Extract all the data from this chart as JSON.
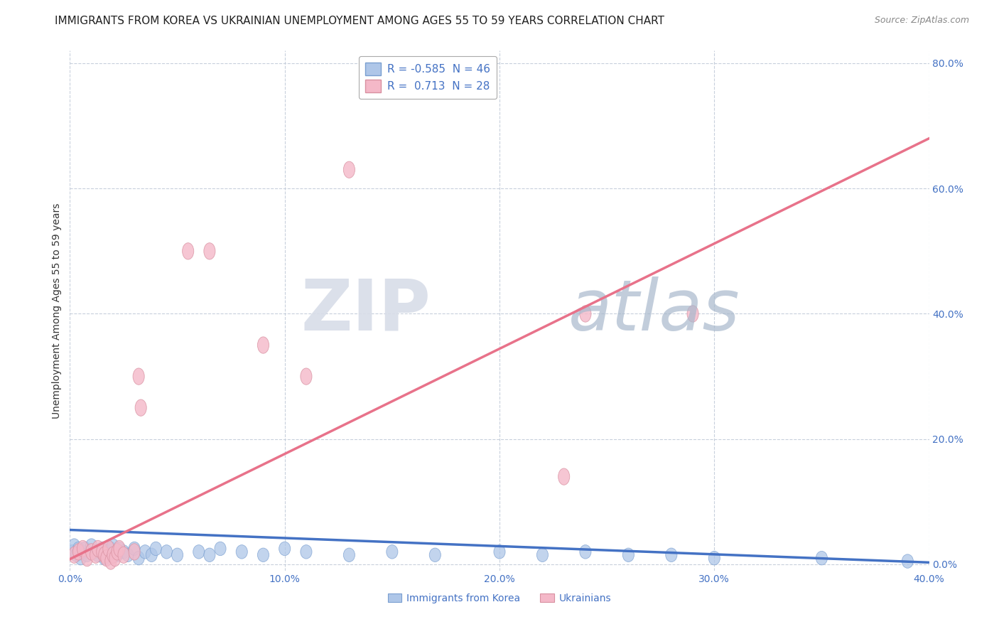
{
  "title": "IMMIGRANTS FROM KOREA VS UKRAINIAN UNEMPLOYMENT AMONG AGES 55 TO 59 YEARS CORRELATION CHART",
  "source": "Source: ZipAtlas.com",
  "ylabel": "Unemployment Among Ages 55 to 59 years",
  "xlim": [
    0.0,
    0.4
  ],
  "ylim": [
    -0.01,
    0.82
  ],
  "xticks": [
    0.0,
    0.1,
    0.2,
    0.3,
    0.4
  ],
  "xticklabels": [
    "0.0%",
    "10.0%",
    "20.0%",
    "30.0%",
    "40.0%"
  ],
  "yticks": [
    0.0,
    0.2,
    0.4,
    0.6,
    0.8
  ],
  "yticklabels": [
    "0.0%",
    "20.0%",
    "40.0%",
    "60.0%",
    "80.0%"
  ],
  "blue_R": -0.585,
  "blue_N": 46,
  "pink_R": 0.713,
  "pink_N": 28,
  "blue_color": "#aec6e8",
  "pink_color": "#f4b8c8",
  "blue_line_color": "#4472c4",
  "pink_line_color": "#e8728a",
  "blue_scatter": [
    [
      0.001,
      0.02
    ],
    [
      0.002,
      0.03
    ],
    [
      0.003,
      0.015
    ],
    [
      0.004,
      0.025
    ],
    [
      0.005,
      0.01
    ],
    [
      0.006,
      0.02
    ],
    [
      0.007,
      0.025
    ],
    [
      0.008,
      0.015
    ],
    [
      0.01,
      0.03
    ],
    [
      0.012,
      0.02
    ],
    [
      0.013,
      0.015
    ],
    [
      0.015,
      0.025
    ],
    [
      0.016,
      0.01
    ],
    [
      0.017,
      0.02
    ],
    [
      0.018,
      0.015
    ],
    [
      0.019,
      0.025
    ],
    [
      0.02,
      0.03
    ],
    [
      0.022,
      0.015
    ],
    [
      0.023,
      0.025
    ],
    [
      0.025,
      0.02
    ],
    [
      0.027,
      0.015
    ],
    [
      0.03,
      0.025
    ],
    [
      0.032,
      0.01
    ],
    [
      0.035,
      0.02
    ],
    [
      0.038,
      0.015
    ],
    [
      0.04,
      0.025
    ],
    [
      0.045,
      0.02
    ],
    [
      0.05,
      0.015
    ],
    [
      0.06,
      0.02
    ],
    [
      0.065,
      0.015
    ],
    [
      0.07,
      0.025
    ],
    [
      0.08,
      0.02
    ],
    [
      0.09,
      0.015
    ],
    [
      0.1,
      0.025
    ],
    [
      0.11,
      0.02
    ],
    [
      0.13,
      0.015
    ],
    [
      0.15,
      0.02
    ],
    [
      0.17,
      0.015
    ],
    [
      0.2,
      0.02
    ],
    [
      0.22,
      0.015
    ],
    [
      0.24,
      0.02
    ],
    [
      0.26,
      0.015
    ],
    [
      0.28,
      0.015
    ],
    [
      0.3,
      0.01
    ],
    [
      0.35,
      0.01
    ],
    [
      0.39,
      0.005
    ]
  ],
  "pink_scatter": [
    [
      0.002,
      0.015
    ],
    [
      0.004,
      0.02
    ],
    [
      0.006,
      0.025
    ],
    [
      0.008,
      0.01
    ],
    [
      0.01,
      0.02
    ],
    [
      0.012,
      0.015
    ],
    [
      0.013,
      0.025
    ],
    [
      0.015,
      0.02
    ],
    [
      0.016,
      0.015
    ],
    [
      0.017,
      0.01
    ],
    [
      0.018,
      0.025
    ],
    [
      0.019,
      0.005
    ],
    [
      0.02,
      0.015
    ],
    [
      0.021,
      0.01
    ],
    [
      0.022,
      0.02
    ],
    [
      0.023,
      0.025
    ],
    [
      0.025,
      0.015
    ],
    [
      0.03,
      0.02
    ],
    [
      0.032,
      0.3
    ],
    [
      0.033,
      0.25
    ],
    [
      0.055,
      0.5
    ],
    [
      0.065,
      0.5
    ],
    [
      0.09,
      0.35
    ],
    [
      0.11,
      0.3
    ],
    [
      0.13,
      0.63
    ],
    [
      0.23,
      0.14
    ],
    [
      0.24,
      0.4
    ],
    [
      0.29,
      0.4
    ]
  ],
  "blue_trendline": [
    [
      0.0,
      0.055
    ],
    [
      0.4,
      0.003
    ]
  ],
  "pink_trendline": [
    [
      -0.005,
      0.0
    ],
    [
      0.4,
      0.68
    ]
  ],
  "watermark_zip": "ZIP",
  "watermark_atlas": "atlas",
  "background_color": "#ffffff",
  "grid_color": "#c8d0dc",
  "title_fontsize": 11,
  "axis_label_fontsize": 10,
  "tick_fontsize": 10,
  "legend_blue_label": "R = -0.585  N = 46",
  "legend_pink_label": "R =  0.713  N = 28",
  "bottom_legend_blue": "Immigrants from Korea",
  "bottom_legend_pink": "Ukrainians"
}
